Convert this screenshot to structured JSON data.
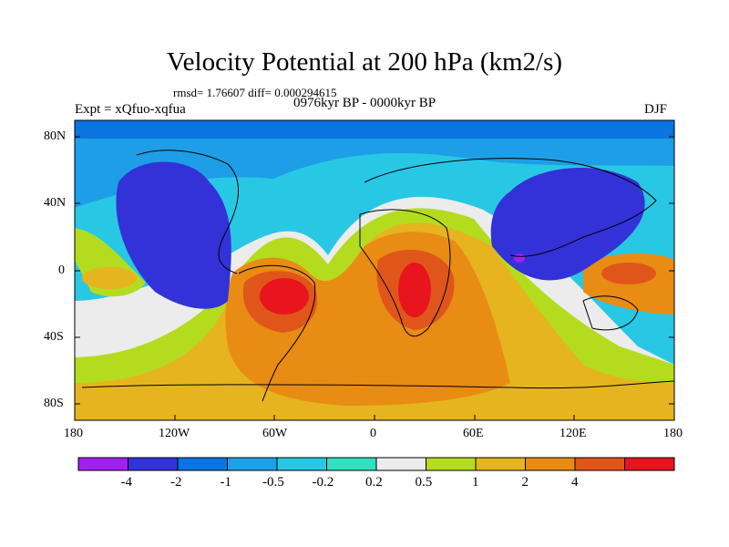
{
  "title": "Velocity Potential at 200 hPa (km2/s)",
  "stats": "rmsd= 1.76607  diff= 0.000294615",
  "expt": "Expt = xQfuo-xqfua",
  "period": "0976kyr BP - 0000kyr BP",
  "season": "DJF",
  "lat_labels": [
    "80N",
    "40N",
    "0",
    "40S",
    "80S"
  ],
  "lon_labels": [
    "180",
    "120W",
    "60W",
    "0",
    "60E",
    "120E",
    "180"
  ],
  "colorbar": {
    "labels": [
      "-4",
      "-2",
      "-1",
      "-0.5",
      "-0.2",
      "0.2",
      "0.5",
      "1",
      "2",
      "4"
    ],
    "colors": [
      "#a020f0",
      "#3232d8",
      "#0a74e0",
      "#1ea0e6",
      "#28c8e4",
      "#30e0c0",
      "#ececec",
      "#b4dc1e",
      "#e6b41e",
      "#e88c14",
      "#e0561a",
      "#e8141e"
    ]
  }
}
